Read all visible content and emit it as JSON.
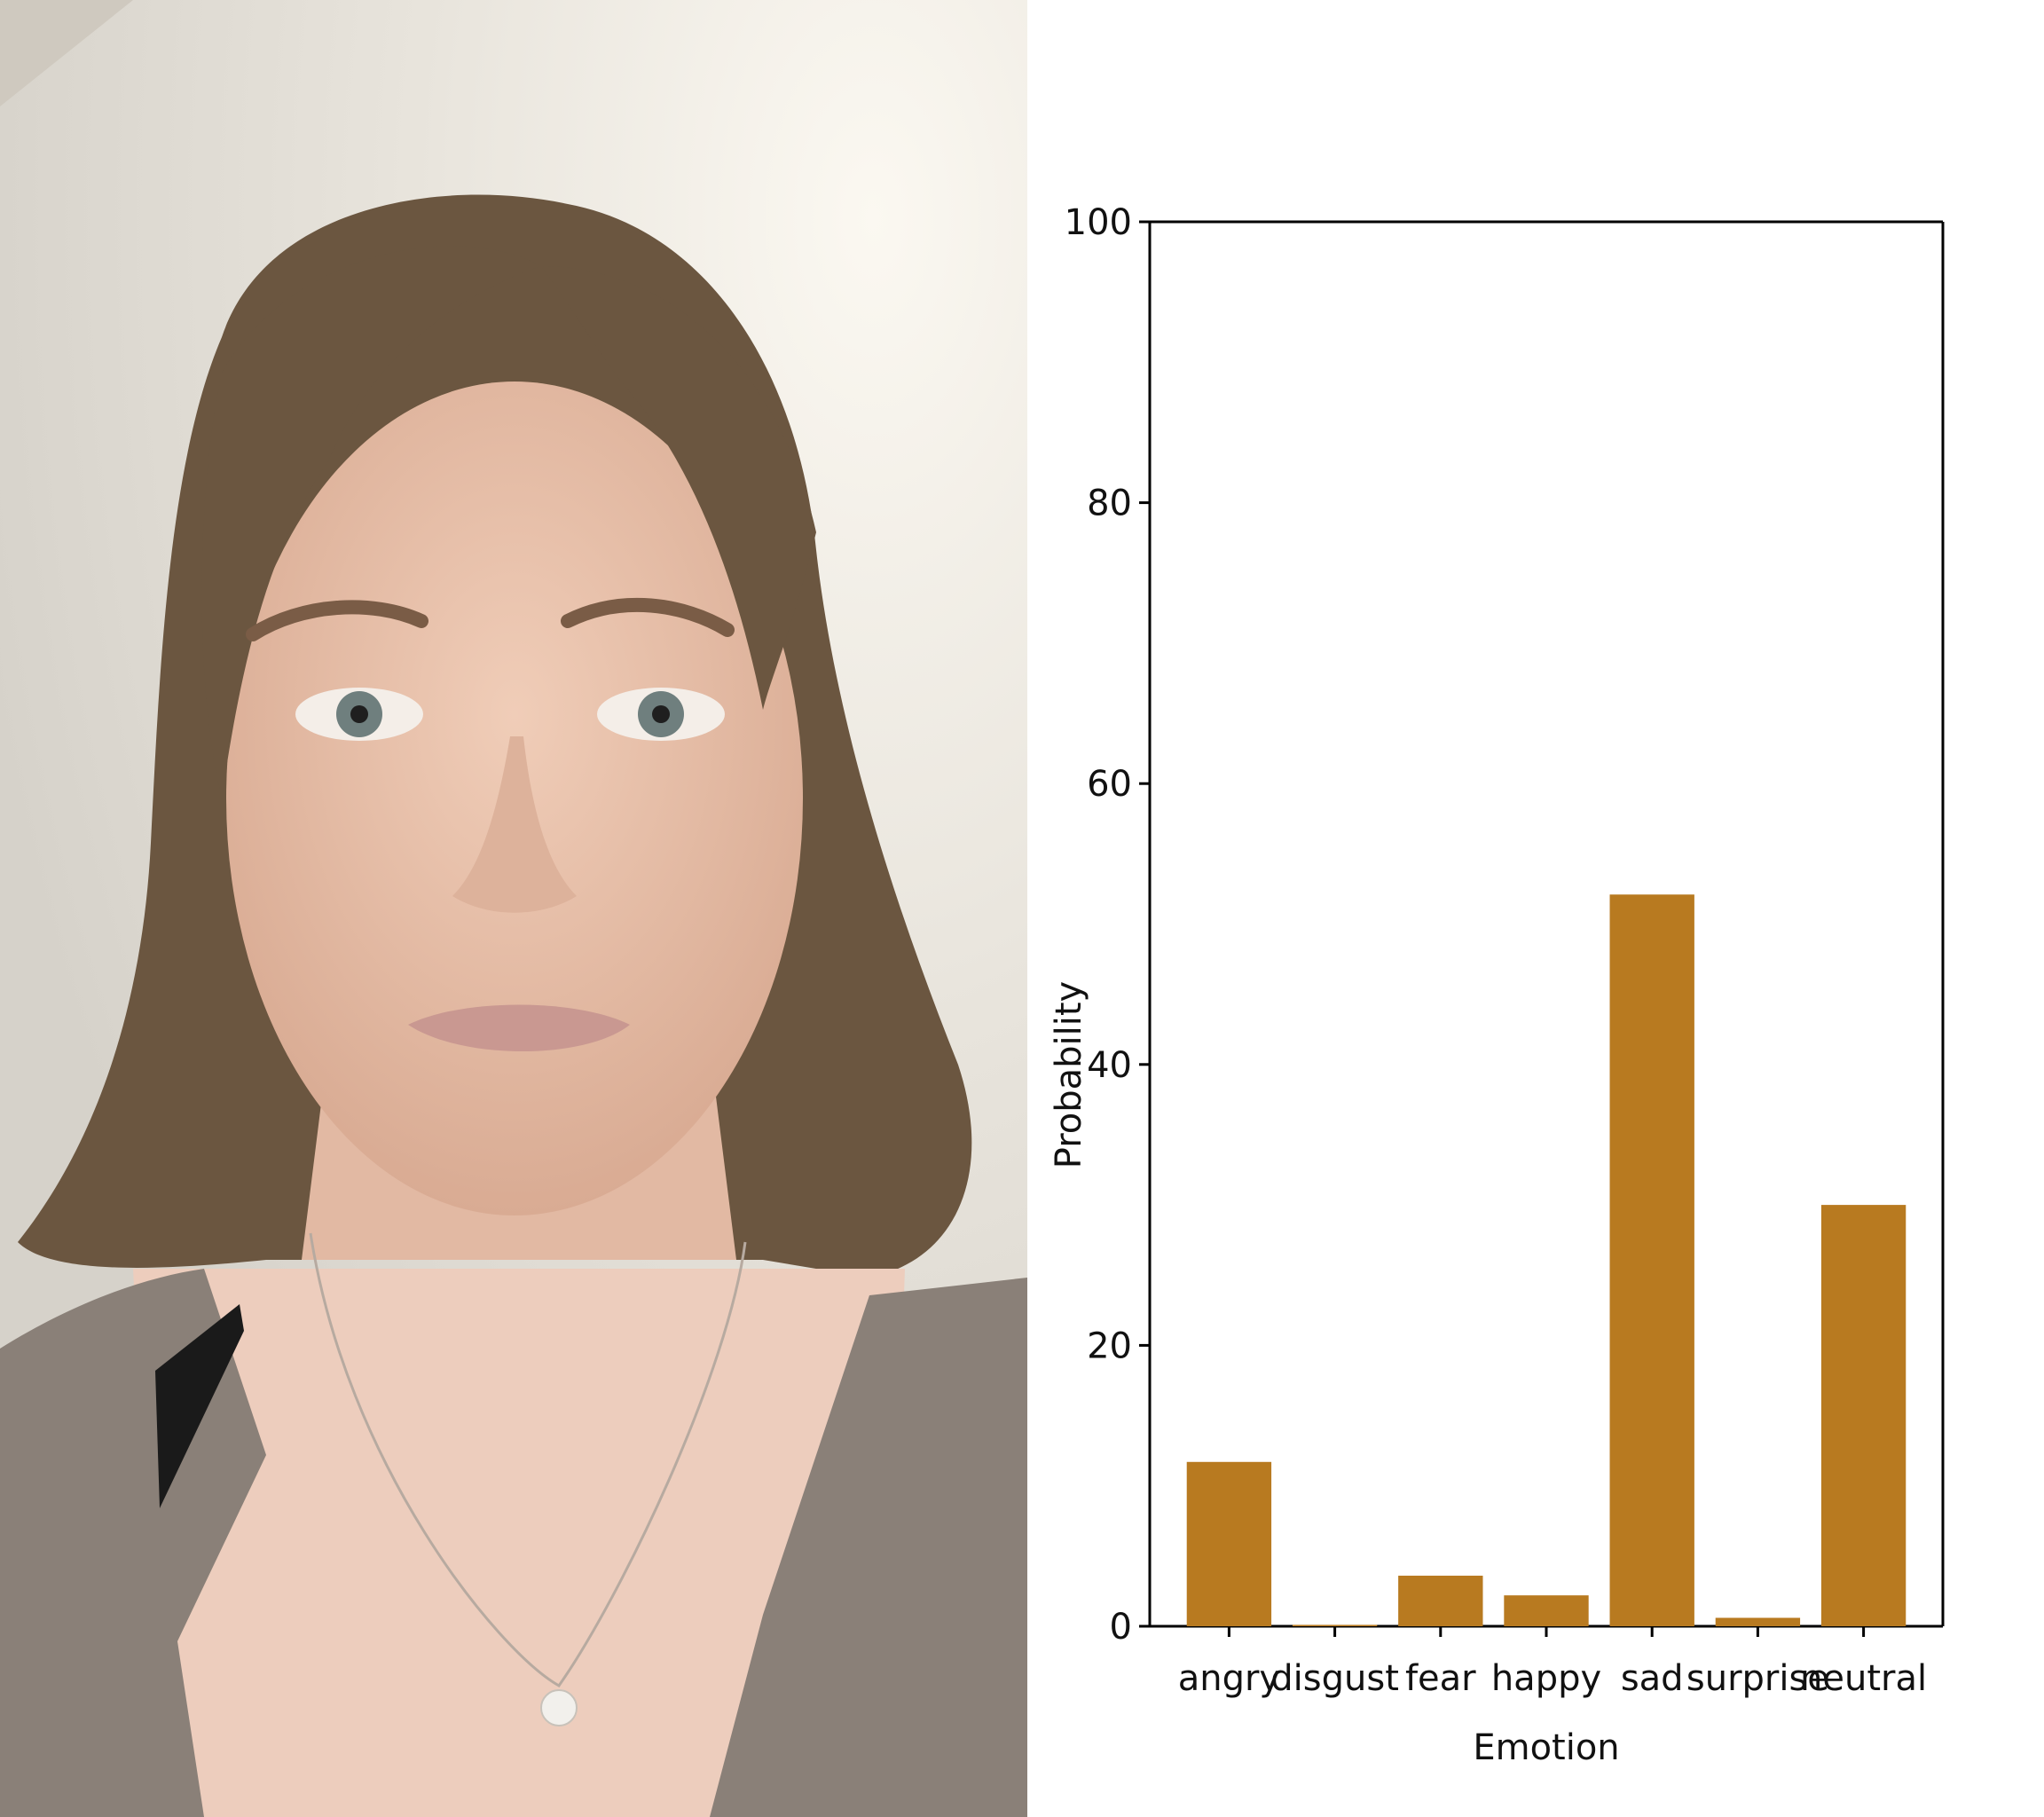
{
  "photo": {
    "subject": "portrait-photo",
    "colors": {
      "wall": "#e8e4dc",
      "skin": "#e7c2ad",
      "hair": "#6b5640",
      "cardigan": "#8a8078",
      "strap": "#1a1a1a",
      "pearl": "#f2f0ec"
    }
  },
  "chart_data": {
    "type": "bar",
    "categories": [
      "angry",
      "disgust",
      "fear",
      "happy",
      "sad",
      "surprise",
      "neutral"
    ],
    "values": [
      11.7,
      0.1,
      3.6,
      2.2,
      52.1,
      0.6,
      30.0
    ],
    "xlabel": "Emotion",
    "ylabel": "Probability",
    "ylim": [
      0,
      100
    ],
    "yticks": [
      0,
      20,
      40,
      60,
      80,
      100
    ],
    "grid": false,
    "legend": "none",
    "bar_color": "#b87a20"
  }
}
